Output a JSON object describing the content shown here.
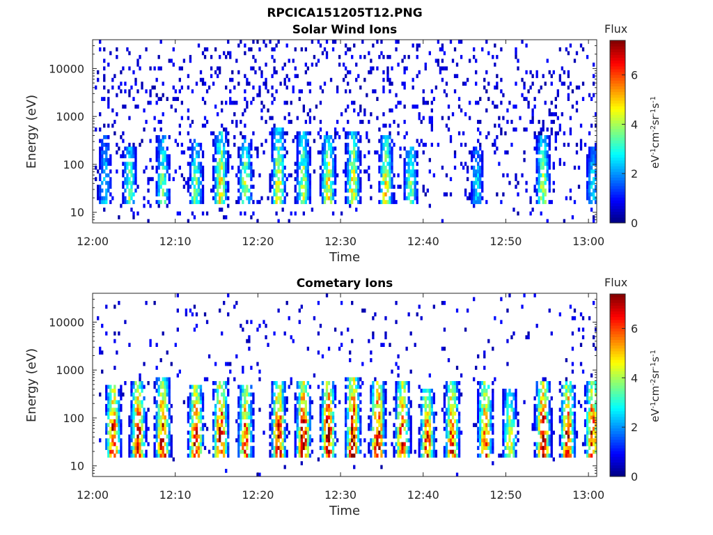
{
  "figure": {
    "title": "RPCICA151205T12.PNG"
  },
  "colors": {
    "axis": "#262626",
    "background": "#ffffff",
    "colormap": "jet"
  },
  "chart_data": [
    {
      "type": "heatmap",
      "title": "Solar Wind Ions",
      "xlabel": "Time",
      "ylabel": "Energy (eV)",
      "x_ticks": [
        "12:00",
        "12:10",
        "12:20",
        "12:30",
        "12:40",
        "12:50",
        "13:00"
      ],
      "xlim": [
        "12:00",
        "13:01"
      ],
      "y_scale": "log",
      "y_ticks": [
        "10",
        "100",
        "1000",
        "10000"
      ],
      "ylim": [
        6,
        40000
      ],
      "colorbar": {
        "title": "Flux",
        "label": "eV-1cm-2sr-1s-1",
        "ticks": [
          "0",
          "2",
          "4",
          "6"
        ],
        "range": [
          0,
          7.4
        ]
      },
      "bursts": [
        {
          "t": "12:01",
          "peak": 2.5,
          "top": 300
        },
        {
          "t": "12:04",
          "peak": 3.5,
          "top": 200
        },
        {
          "t": "12:08",
          "peak": 3.5,
          "top": 300
        },
        {
          "t": "12:12",
          "peak": 3.5,
          "top": 250
        },
        {
          "t": "12:15",
          "peak": 4.5,
          "top": 400
        },
        {
          "t": "12:18",
          "peak": 4.0,
          "top": 250
        },
        {
          "t": "12:22",
          "peak": 4.5,
          "top": 500
        },
        {
          "t": "12:25",
          "peak": 4.0,
          "top": 400
        },
        {
          "t": "12:28",
          "peak": 4.5,
          "top": 350
        },
        {
          "t": "12:31",
          "peak": 4.5,
          "top": 400
        },
        {
          "t": "12:35",
          "peak": 4.5,
          "top": 300
        },
        {
          "t": "12:38",
          "peak": 3.5,
          "top": 200
        },
        {
          "t": "12:46",
          "peak": 2.5,
          "top": 200
        },
        {
          "t": "12:54",
          "peak": 4.0,
          "top": 300
        },
        {
          "t": "13:00",
          "peak": 2.5,
          "top": 200
        }
      ]
    },
    {
      "type": "heatmap",
      "title": "Cometary Ions",
      "xlabel": "Time",
      "ylabel": "Energy (eV)",
      "x_ticks": [
        "12:00",
        "12:10",
        "12:20",
        "12:30",
        "12:40",
        "12:50",
        "13:00"
      ],
      "xlim": [
        "12:00",
        "13:01"
      ],
      "y_scale": "log",
      "y_ticks": [
        "10",
        "100",
        "1000",
        "10000"
      ],
      "ylim": [
        6,
        40000
      ],
      "colorbar": {
        "title": "Flux",
        "label": "eV-1cm-2sr-1s-1",
        "ticks": [
          "0",
          "2",
          "4",
          "6"
        ],
        "range": [
          0,
          7.4
        ]
      },
      "bursts": [
        {
          "t": "12:02",
          "peak": 6.5,
          "top": 400
        },
        {
          "t": "12:05",
          "peak": 6.5,
          "top": 500
        },
        {
          "t": "12:08",
          "peak": 6.5,
          "top": 600
        },
        {
          "t": "12:12",
          "peak": 6.5,
          "top": 400
        },
        {
          "t": "12:15",
          "peak": 7.0,
          "top": 500
        },
        {
          "t": "12:18",
          "peak": 6.0,
          "top": 400
        },
        {
          "t": "12:22",
          "peak": 6.5,
          "top": 500
        },
        {
          "t": "12:25",
          "peak": 7.0,
          "top": 500
        },
        {
          "t": "12:28",
          "peak": 7.0,
          "top": 500
        },
        {
          "t": "12:31",
          "peak": 7.0,
          "top": 600
        },
        {
          "t": "12:34",
          "peak": 7.0,
          "top": 500
        },
        {
          "t": "12:37",
          "peak": 6.5,
          "top": 500
        },
        {
          "t": "12:40",
          "peak": 6.0,
          "top": 300
        },
        {
          "t": "12:43",
          "peak": 6.0,
          "top": 500
        },
        {
          "t": "12:47",
          "peak": 6.0,
          "top": 500
        },
        {
          "t": "12:50",
          "peak": 4.5,
          "top": 300
        },
        {
          "t": "12:54",
          "peak": 7.0,
          "top": 500
        },
        {
          "t": "12:57",
          "peak": 6.5,
          "top": 500
        },
        {
          "t": "13:00",
          "peak": 6.5,
          "top": 500
        }
      ]
    }
  ]
}
